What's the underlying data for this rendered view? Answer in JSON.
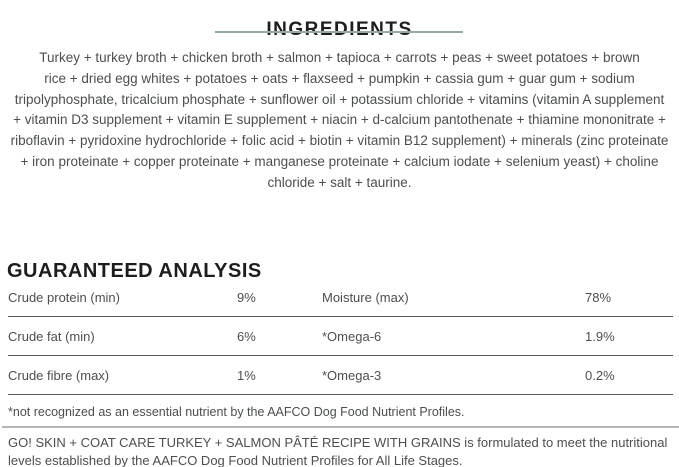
{
  "colors": {
    "heading_text": "#1d1d1f",
    "body_text": "#4c4e50",
    "accent_underline": "#9aa8a3",
    "row_divider": "#58585a",
    "section_divider": "#b3b6b8"
  },
  "ingredients_section": {
    "title": "INGREDIENTS",
    "lines": [
      "Turkey + turkey broth + chicken broth + salmon + tapioca + carrots + peas + sweet potatoes + brown",
      "rice + dried egg whites + potatoes + oats + flaxseed + pumpkin + cassia gum + guar gum + sodium",
      "tripolyphosphate, tricalcium phosphate + sunflower oil + potassium chloride + vitamins (vitamin A supplement",
      "+ vitamin D3 supplement + vitamin E supplement + niacin + d-calcium pantothenate + thiamine mononitrate +",
      "riboflavin + pyridoxine hydrochloride + folic acid + biotin + vitamin B12 supplement) + minerals (zinc proteinate",
      "+ iron proteinate + copper proteinate + manganese proteinate + calcium iodate + selenium yeast) + choline",
      "chloride + salt + taurine."
    ]
  },
  "guaranteed_analysis": {
    "title": "GUARANTEED ANALYSIS",
    "rows": [
      {
        "nutrient_left": "Crude protein (min)",
        "value_left": "9%",
        "nutrient_right": "Moisture (max)",
        "value_right": "78%"
      },
      {
        "nutrient_left": "Crude fat (min)",
        "value_left": "6%",
        "nutrient_right": "*Omega-6",
        "value_right": "1.9%"
      },
      {
        "nutrient_left": "Crude fibre (max)",
        "value_left": "1%",
        "nutrient_right": "*Omega-3",
        "value_right": "0.2%"
      }
    ],
    "footnote": "*not recognized as an essential nutrient by the AAFCO Dog Food Nutrient Profiles."
  },
  "aafco_statement": "GO! SKIN + COAT CARE TURKEY + SALMON PÂTÉ RECIPE WITH GRAINS is formulated to meet the nutritional levels established by the AAFCO Dog Food Nutrient Profiles for All Life Stages."
}
